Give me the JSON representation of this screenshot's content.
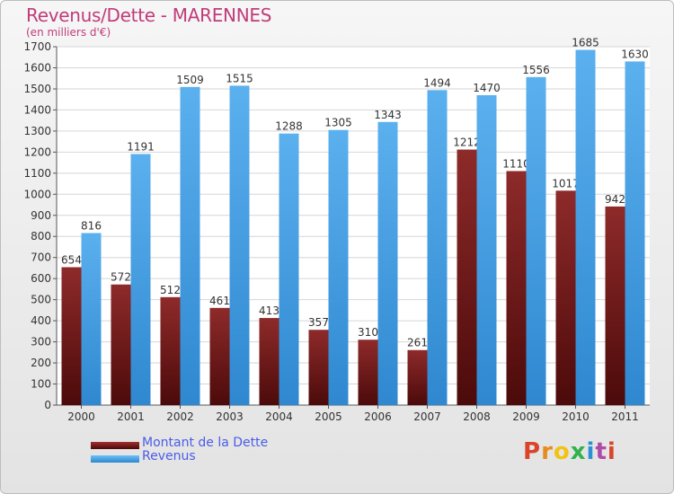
{
  "title": "Revenus/Dette - MARENNES",
  "subtitle": "(en milliers d'€)",
  "logo": {
    "text": "Proxiti",
    "letter_colors": [
      "#d9442b",
      "#e88b1f",
      "#f2c315",
      "#31b24a",
      "#2f8fd6",
      "#b04aa8",
      "#d9442b"
    ]
  },
  "colors": {
    "dette": "#7a1c1c",
    "revenus": "#4aa2e6",
    "title": "#c03c7a",
    "legend_text": "#4a5ce8"
  },
  "chart_data": {
    "type": "bar",
    "title": "Revenus/Dette - MARENNES",
    "subtitle": "(en milliers d'€)",
    "categories": [
      "2000",
      "2001",
      "2002",
      "2003",
      "2004",
      "2005",
      "2006",
      "2007",
      "2008",
      "2009",
      "2010",
      "2011"
    ],
    "series": [
      {
        "name": "Montant de la Dette",
        "values": [
          654,
          572,
          512,
          461,
          413,
          357,
          310,
          261,
          1212,
          1110,
          1017,
          942
        ]
      },
      {
        "name": "Revenus",
        "values": [
          816,
          1191,
          1509,
          1515,
          1288,
          1305,
          1343,
          1494,
          1470,
          1556,
          1685,
          1630
        ]
      }
    ],
    "ylim": [
      0,
      1700
    ],
    "ytick_step": 100,
    "grid": true,
    "legend": "bottom-left"
  }
}
